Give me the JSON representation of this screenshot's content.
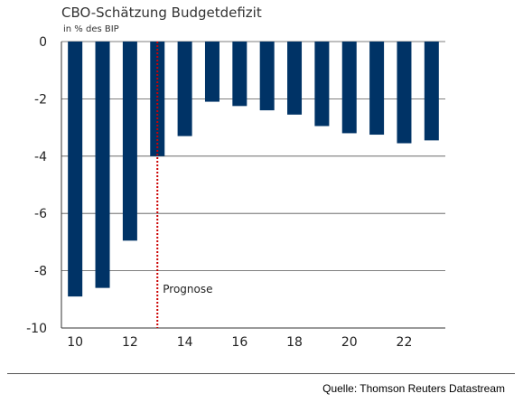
{
  "chart_data": {
    "type": "bar",
    "title": "CBO-Schätzung Budgetdefizit",
    "subtitle": "in % des BIP",
    "categories": [
      "10",
      "11",
      "12",
      "13",
      "14",
      "15",
      "16",
      "17",
      "18",
      "19",
      "20",
      "21",
      "22",
      "23"
    ],
    "values": [
      -8.9,
      -8.6,
      -6.95,
      -4.0,
      -3.3,
      -2.1,
      -2.25,
      -2.4,
      -2.55,
      -2.95,
      -3.2,
      -3.25,
      -3.55,
      -3.45
    ],
    "x_tick_labels": [
      "10",
      "12",
      "14",
      "16",
      "18",
      "20",
      "22"
    ],
    "y_tick_labels": [
      "0",
      "-2",
      "-4",
      "-6",
      "-8",
      "-10"
    ],
    "y_ticks": [
      0,
      -2,
      -4,
      -6,
      -8,
      -10
    ],
    "ylim": [
      -10,
      0
    ],
    "grid": true,
    "bar_color": "#003366",
    "prognose_marker": {
      "label": "Prognose",
      "x": "13",
      "color": "#cc0000"
    }
  },
  "source": "Quelle: Thomson Reuters Datastream"
}
